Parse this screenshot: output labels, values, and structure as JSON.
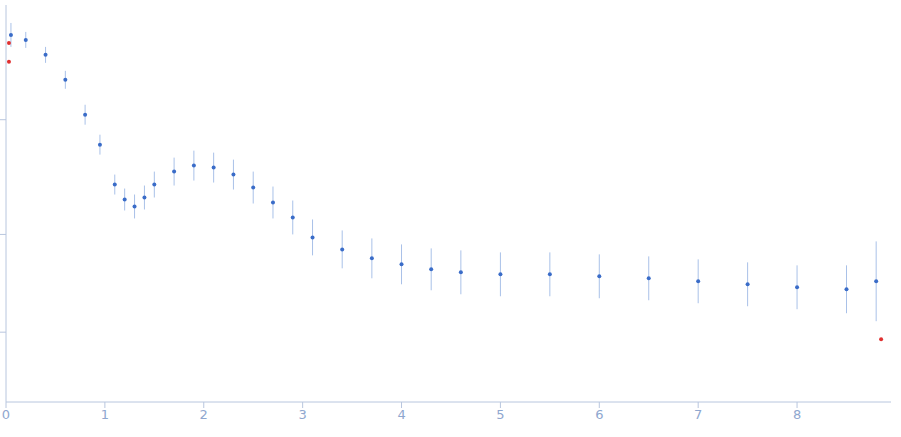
{
  "chart_data": {
    "type": "scatter",
    "tick_labels": "x",
    "grid": false,
    "color": "#3a6cc8",
    "marker": "circle",
    "x": [
      0.05,
      0.2,
      0.4,
      0.6,
      0.8,
      0.95,
      1.1,
      1.2,
      1.3,
      1.4,
      1.5,
      1.7,
      1.9,
      2.1,
      2.3,
      2.5,
      2.7,
      2.9,
      3.1,
      3.4,
      3.7,
      4.0,
      4.3,
      4.6,
      5.0,
      5.5,
      6.0,
      6.5,
      7.0,
      7.5,
      8.0,
      8.5,
      8.8
    ],
    "values": [
      3.68,
      3.63,
      3.48,
      3.23,
      2.88,
      2.58,
      2.18,
      2.03,
      1.96,
      2.05,
      2.18,
      2.31,
      2.37,
      2.35,
      2.28,
      2.15,
      2.0,
      1.85,
      1.65,
      1.53,
      1.44,
      1.38,
      1.33,
      1.3,
      1.28,
      1.28,
      1.26,
      1.24,
      1.21,
      1.18,
      1.15,
      1.13,
      1.21
    ],
    "errors": [
      0.12,
      0.08,
      0.08,
      0.09,
      0.1,
      0.1,
      0.1,
      0.11,
      0.12,
      0.12,
      0.13,
      0.14,
      0.15,
      0.15,
      0.15,
      0.16,
      0.16,
      0.17,
      0.18,
      0.19,
      0.2,
      0.2,
      0.21,
      0.22,
      0.22,
      0.22,
      0.22,
      0.22,
      0.22,
      0.22,
      0.22,
      0.24,
      0.4
    ],
    "outliers": {
      "x": [
        0.03,
        0.03,
        8.85
      ],
      "values": [
        3.6,
        3.41,
        0.63
      ],
      "color": "#e03030"
    },
    "xlim": [
      0,
      8.95
    ],
    "xticks": [
      0,
      1,
      2,
      3,
      4,
      5,
      6,
      7,
      8
    ],
    "ylim": [
      0,
      3.98
    ],
    "yticks": [
      0.7,
      1.68,
      2.83
    ]
  }
}
